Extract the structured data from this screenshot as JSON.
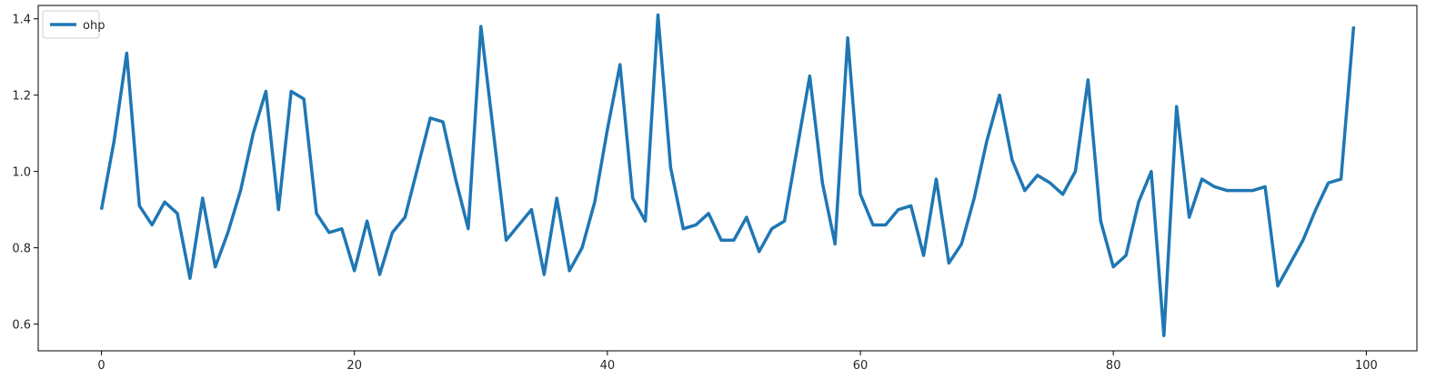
{
  "chart_data": {
    "type": "line",
    "title": "",
    "xlabel": "",
    "ylabel": "",
    "xlim": [
      -5,
      104
    ],
    "ylim": [
      0.53,
      1.435
    ],
    "xticks": [
      0,
      20,
      40,
      60,
      80,
      100
    ],
    "yticks": [
      0.6,
      0.8,
      1.0,
      1.2,
      1.4
    ],
    "xtick_labels": [
      "0",
      "20",
      "40",
      "60",
      "80",
      "100"
    ],
    "ytick_labels": [
      "0.6",
      "0.8",
      "1.0",
      "1.2",
      "1.4"
    ],
    "grid": false,
    "legend_position": "top-left",
    "series": [
      {
        "name": "ohp",
        "color": "#1f77b4",
        "x": [
          0,
          1,
          2,
          3,
          4,
          5,
          6,
          7,
          8,
          9,
          10,
          11,
          12,
          13,
          14,
          15,
          16,
          17,
          18,
          19,
          20,
          21,
          22,
          23,
          24,
          25,
          26,
          27,
          28,
          29,
          30,
          31,
          32,
          33,
          34,
          35,
          36,
          37,
          38,
          39,
          40,
          41,
          42,
          43,
          44,
          45,
          46,
          47,
          48,
          49,
          50,
          51,
          52,
          53,
          54,
          55,
          56,
          57,
          58,
          59,
          60,
          61,
          62,
          63,
          64,
          65,
          66,
          67,
          68,
          69,
          70,
          71,
          72,
          73,
          74,
          75,
          76,
          77,
          78,
          79,
          80,
          81,
          82,
          83,
          84,
          85,
          86,
          87,
          88,
          89,
          90,
          91,
          92,
          93,
          94,
          95,
          96,
          97,
          98,
          99
        ],
        "y": [
          0.9,
          1.08,
          1.31,
          0.91,
          0.86,
          0.92,
          0.89,
          0.72,
          0.93,
          0.75,
          0.84,
          0.95,
          1.1,
          1.21,
          0.9,
          1.21,
          1.19,
          0.89,
          0.84,
          0.85,
          0.74,
          0.87,
          0.73,
          0.84,
          0.88,
          1.01,
          1.14,
          1.13,
          0.98,
          0.85,
          1.38,
          1.1,
          0.82,
          0.86,
          0.9,
          0.73,
          0.93,
          0.74,
          0.8,
          0.92,
          1.11,
          1.28,
          0.93,
          0.87,
          1.41,
          1.01,
          0.85,
          0.86,
          0.89,
          0.82,
          0.82,
          0.88,
          0.79,
          0.85,
          0.87,
          1.06,
          1.25,
          0.97,
          0.81,
          1.35,
          0.94,
          0.86,
          0.86,
          0.9,
          0.91,
          0.78,
          0.98,
          0.76,
          0.81,
          0.93,
          1.08,
          1.2,
          1.03,
          0.95,
          0.99,
          0.97,
          0.94,
          1.0,
          1.24,
          0.87,
          0.75,
          0.78,
          0.92,
          1.0,
          0.57,
          1.17,
          0.88,
          0.98,
          0.96,
          0.95,
          0.95,
          0.95,
          0.96,
          0.7,
          0.76,
          0.82,
          0.9,
          0.97,
          0.98,
          1.38
        ]
      }
    ]
  }
}
